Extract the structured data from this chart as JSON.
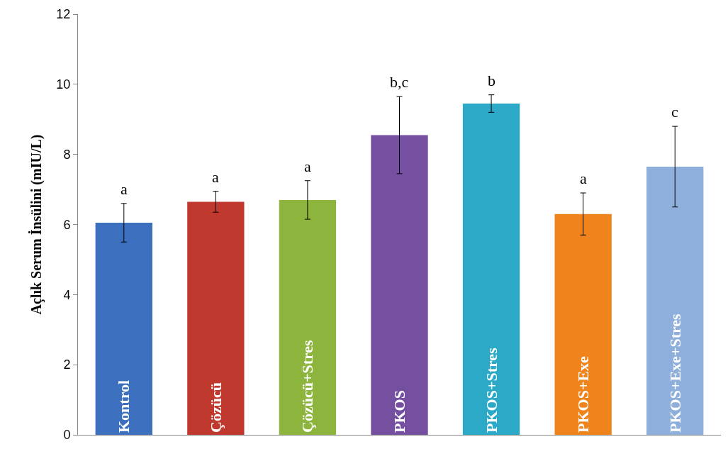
{
  "chart_data": {
    "type": "bar",
    "ylabel": "Açlık Serum İnsülini (mIU/L)",
    "categories": [
      "Kontrol",
      "Çözücü",
      "Çözücü+Stres",
      "PKOS",
      "PKOS+Stres",
      "PKOS+Exe",
      "PKOS+Exe+Stres"
    ],
    "values": [
      6.05,
      6.65,
      6.7,
      8.55,
      9.45,
      6.3,
      7.65
    ],
    "errors": [
      0.55,
      0.3,
      0.55,
      1.1,
      0.25,
      0.6,
      1.15
    ],
    "colors": [
      "#3c70be",
      "#c0392f",
      "#8db43c",
      "#7650a0",
      "#2ba9c6",
      "#f0841c",
      "#8eaedc"
    ],
    "ylim": [
      0,
      12
    ],
    "yticks": [
      0,
      2,
      4,
      6,
      8,
      10,
      12
    ],
    "tick_labels": "y",
    "annotations": [
      "a",
      "a",
      "a",
      "b,c",
      "b",
      "a",
      "c"
    ]
  }
}
